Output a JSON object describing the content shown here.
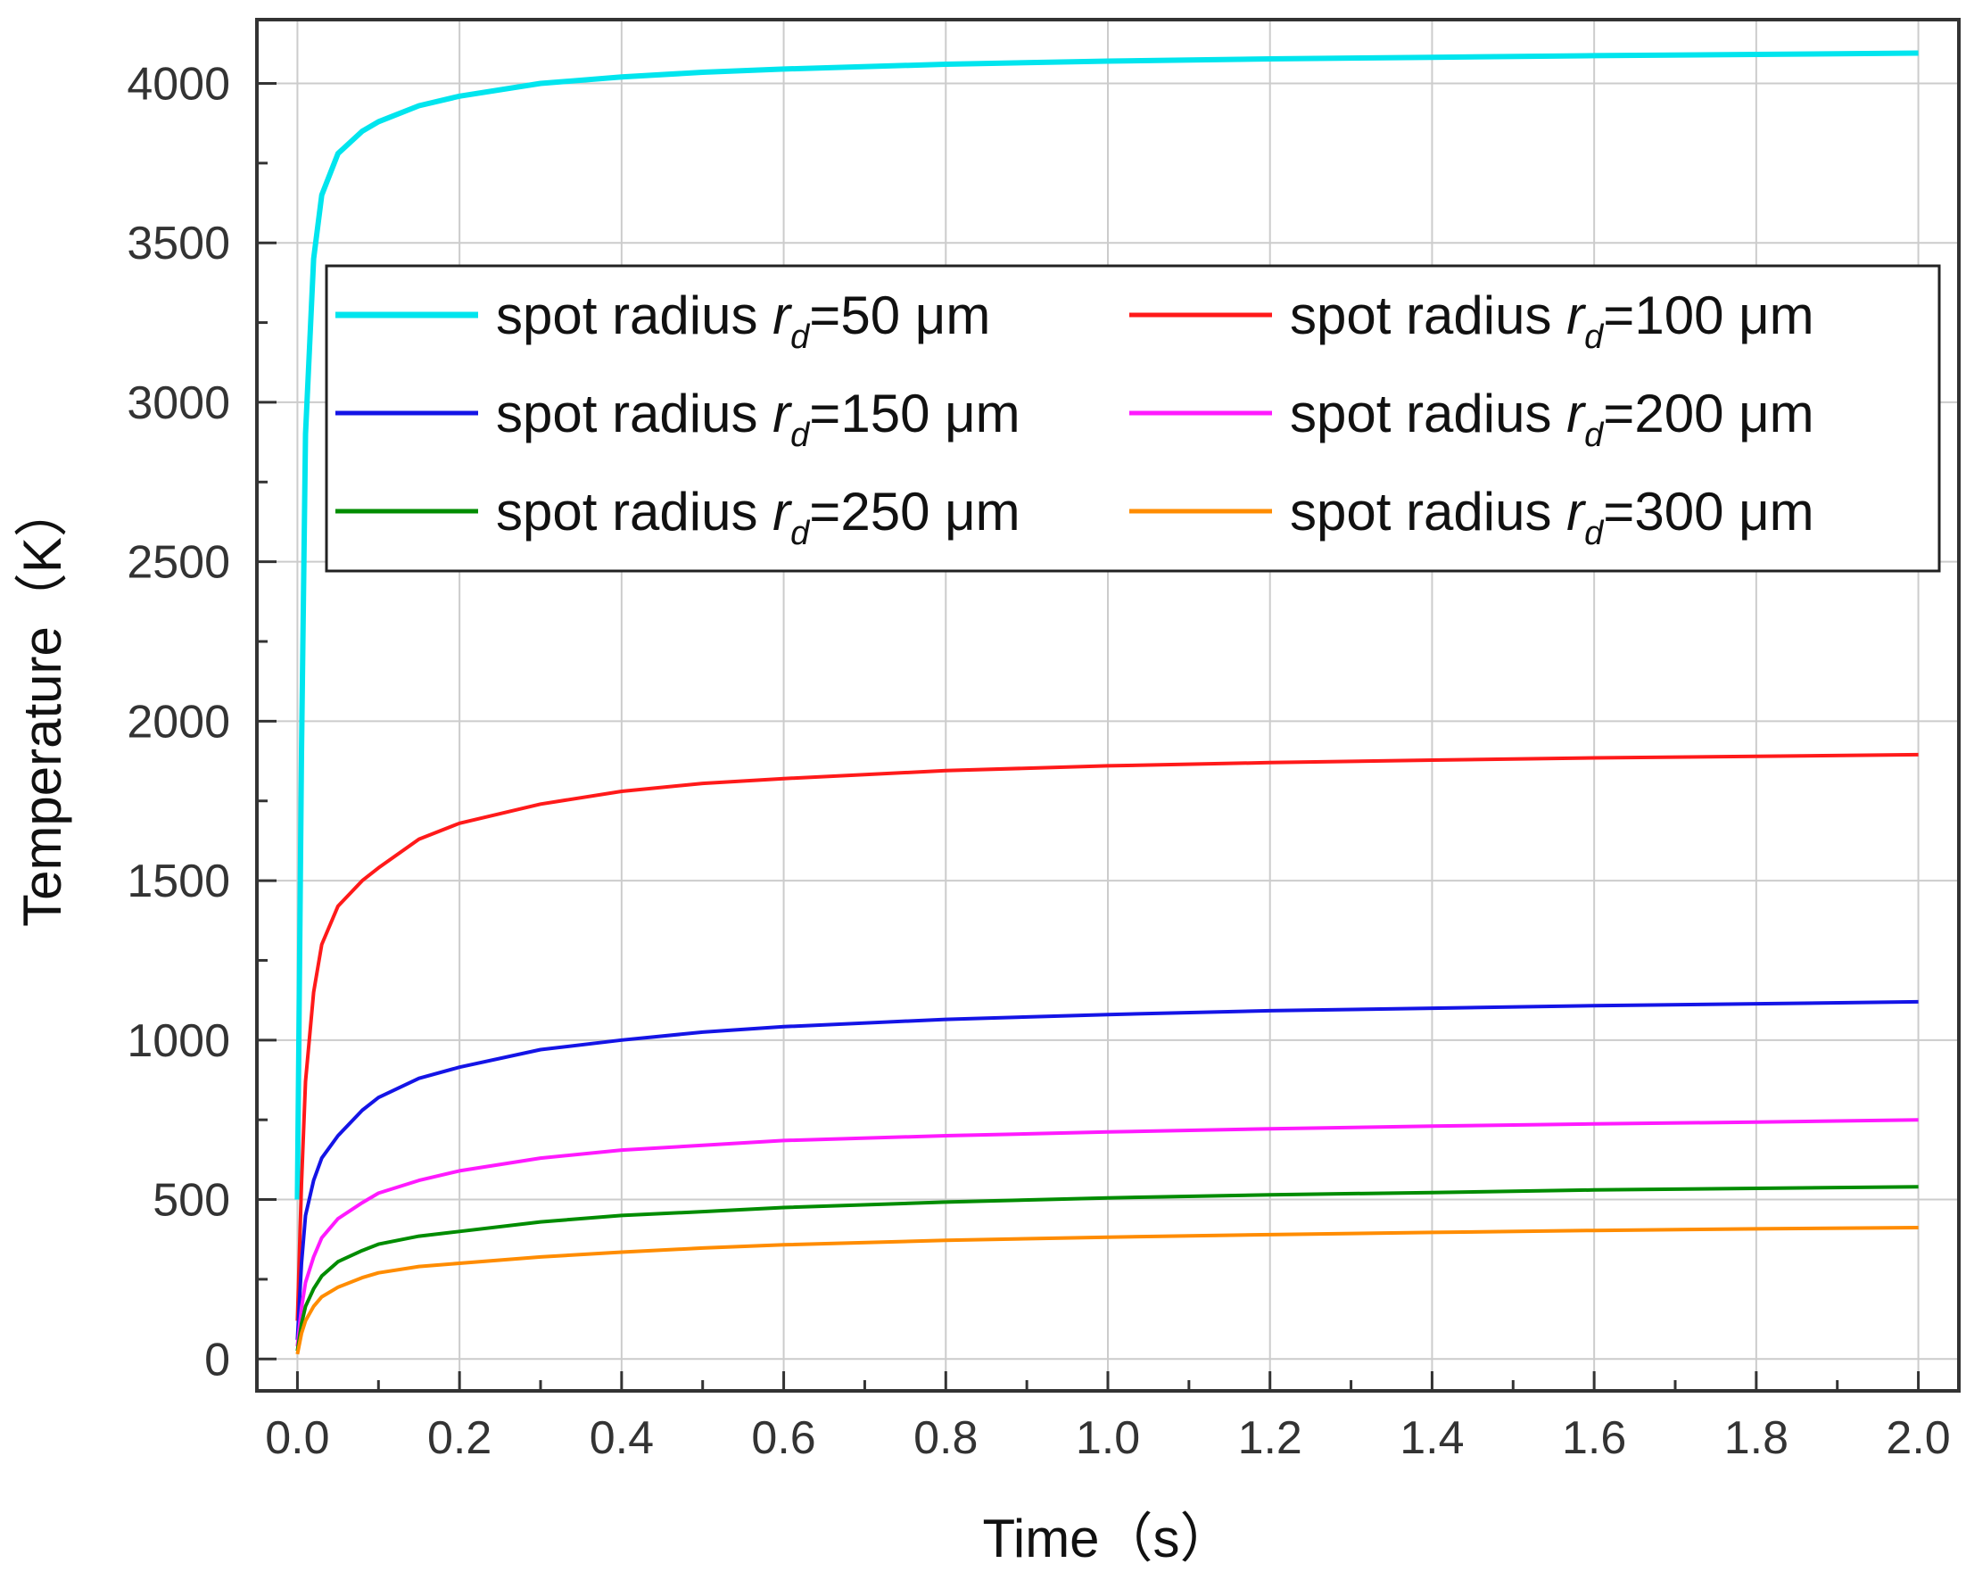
{
  "chart_data": {
    "type": "line",
    "xlabel": "Time（s）",
    "ylabel": "Temperature（K）",
    "xlim": [
      -0.05,
      2.05
    ],
    "ylim": [
      -100,
      4200
    ],
    "x_ticks": [
      0.0,
      0.2,
      0.4,
      0.6,
      0.8,
      1.0,
      1.2,
      1.4,
      1.6,
      1.8,
      2.0
    ],
    "x_tick_labels": [
      "0.0",
      "0.2",
      "0.4",
      "0.6",
      "0.8",
      "1.0",
      "1.2",
      "1.4",
      "1.6",
      "1.8",
      "2.0"
    ],
    "y_ticks": [
      0,
      500,
      1000,
      1500,
      2000,
      2500,
      3000,
      3500,
      4000
    ],
    "y_tick_labels": [
      "0",
      "500",
      "1000",
      "1500",
      "2000",
      "2500",
      "3000",
      "3500",
      "4000"
    ],
    "grid": true,
    "legend_position": "upper-middle",
    "x": [
      0.0,
      0.005,
      0.01,
      0.02,
      0.03,
      0.05,
      0.08,
      0.1,
      0.15,
      0.2,
      0.3,
      0.4,
      0.5,
      0.6,
      0.8,
      1.0,
      1.2,
      1.4,
      1.6,
      1.8,
      2.0
    ],
    "series": [
      {
        "name_prefix": "spot radius ",
        "name_var": "r",
        "name_sub": "d",
        "name_value": "=50 μm",
        "color": "#00e5ee",
        "values": [
          500,
          1900,
          2900,
          3450,
          3650,
          3780,
          3850,
          3880,
          3930,
          3960,
          4000,
          4020,
          4035,
          4045,
          4060,
          4070,
          4077,
          4082,
          4087,
          4091,
          4095
        ]
      },
      {
        "name_prefix": "spot radius ",
        "name_var": "r",
        "name_sub": "d",
        "name_value": "=100 μm",
        "color": "#ff1a1a",
        "values": [
          120,
          550,
          870,
          1150,
          1300,
          1420,
          1500,
          1540,
          1630,
          1680,
          1740,
          1780,
          1805,
          1820,
          1845,
          1860,
          1870,
          1878,
          1885,
          1890,
          1895
        ]
      },
      {
        "name_prefix": "spot radius ",
        "name_var": "r",
        "name_sub": "d",
        "name_value": "=150 μm",
        "color": "#1414e6",
        "values": [
          60,
          300,
          450,
          560,
          630,
          700,
          780,
          820,
          880,
          915,
          970,
          1000,
          1025,
          1042,
          1065,
          1080,
          1092,
          1100,
          1108,
          1114,
          1120
        ]
      },
      {
        "name_prefix": "spot radius ",
        "name_var": "r",
        "name_sub": "d",
        "name_value": "=200 μm",
        "color": "#ff1aff",
        "values": [
          40,
          160,
          240,
          320,
          380,
          440,
          490,
          520,
          560,
          590,
          630,
          655,
          670,
          685,
          700,
          712,
          722,
          730,
          737,
          743,
          750
        ]
      },
      {
        "name_prefix": "spot radius ",
        "name_var": "r",
        "name_sub": "d",
        "name_value": "=250 μm",
        "color": "#008c00",
        "values": [
          25,
          110,
          165,
          220,
          260,
          305,
          340,
          360,
          385,
          400,
          430,
          450,
          462,
          475,
          492,
          505,
          515,
          522,
          530,
          535,
          540
        ]
      },
      {
        "name_prefix": "spot radius ",
        "name_var": "r",
        "name_sub": "d",
        "name_value": "=300 μm",
        "color": "#ff8c00",
        "values": [
          15,
          80,
          120,
          165,
          195,
          225,
          255,
          270,
          290,
          300,
          320,
          335,
          348,
          358,
          372,
          382,
          390,
          397,
          403,
          408,
          412
        ]
      }
    ]
  }
}
